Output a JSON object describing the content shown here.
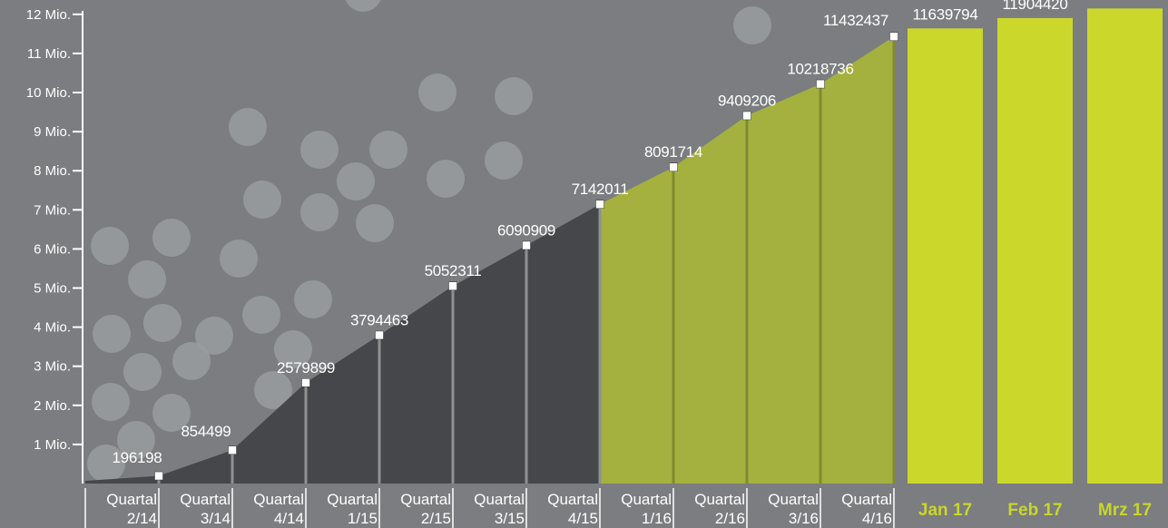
{
  "chart_data": {
    "type": "area",
    "ylim": [
      0,
      12000000
    ],
    "y_tick_values": [
      1000000,
      2000000,
      3000000,
      4000000,
      5000000,
      6000000,
      7000000,
      8000000,
      9000000,
      10000000,
      11000000,
      12000000
    ],
    "y_tick_labels": [
      "1 Mio.",
      "2 Mio.",
      "3 Mio.",
      "4 Mio.",
      "5 Mio.",
      "6 Mio.",
      "7 Mio.",
      "8 Mio.",
      "9 Mio.",
      "10 Mio.",
      "11 Mio.",
      "12 Mio."
    ],
    "quarters": [
      {
        "line1": "Quartal",
        "line2": "2/14",
        "value": 196198,
        "label": "196198"
      },
      {
        "line1": "Quartal",
        "line2": "3/14",
        "value": 854499,
        "label": "854499"
      },
      {
        "line1": "Quartal",
        "line2": "4/14",
        "value": 2579899,
        "label": "2579899"
      },
      {
        "line1": "Quartal",
        "line2": "1/15",
        "value": 3794463,
        "label": "3794463"
      },
      {
        "line1": "Quartal",
        "line2": "2/15",
        "value": 5052311,
        "label": "5052311"
      },
      {
        "line1": "Quartal",
        "line2": "3/15",
        "value": 6090909,
        "label": "6090909"
      },
      {
        "line1": "Quartal",
        "line2": "4/15",
        "value": 7142011,
        "label": "7142011"
      },
      {
        "line1": "Quartal",
        "line2": "1/16",
        "value": 8091714,
        "label": "8091714"
      },
      {
        "line1": "Quartal",
        "line2": "2/16",
        "value": 9409206,
        "label": "9409206"
      },
      {
        "line1": "Quartal",
        "line2": "3/16",
        "value": 10218736,
        "label": "10218736"
      },
      {
        "line1": "Quartal",
        "line2": "4/16",
        "value": 11432437,
        "label": "11432437"
      }
    ],
    "months": [
      {
        "name": "Jan 17",
        "value": 11639794,
        "label": "11639794"
      },
      {
        "name": "Feb 17",
        "value": 11904420,
        "label": "11904420"
      },
      {
        "name": "Mrz 17",
        "value": 12150000,
        "label": ""
      }
    ],
    "grid": false,
    "colors": {
      "background": "#7b7d80",
      "dark_area": "#46474a",
      "green_area": "#a4b13e",
      "green_bar": "#cbd82b",
      "circle": "#9a9c9f",
      "text": "#ffffff",
      "month_label": "#c9d62a"
    }
  }
}
